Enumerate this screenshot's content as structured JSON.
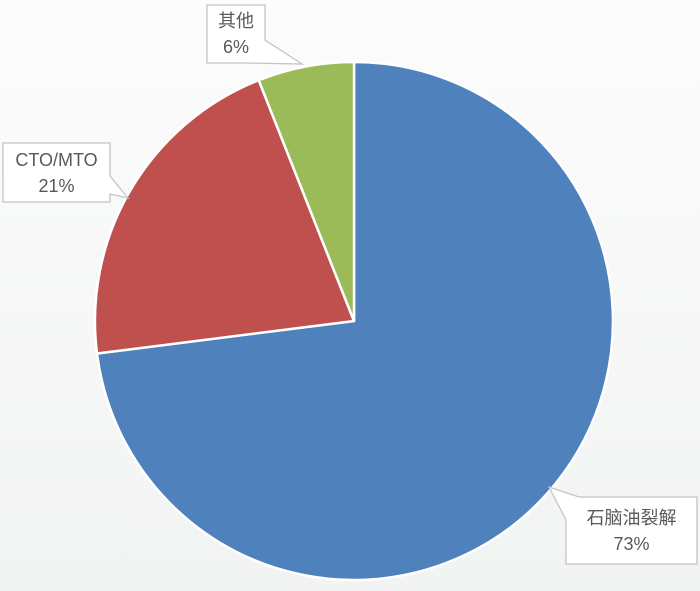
{
  "background": {
    "top": "#fcfcfc",
    "bottom": "#f2f3f3"
  },
  "chart_data": {
    "type": "pie",
    "title": "",
    "legend": "none",
    "labels": "outside-callout-boxes",
    "start_angle": "top",
    "direction": "clockwise",
    "slice_border_color": "#ffffff",
    "callout_fill": "#ffffff",
    "callout_border_color": "#c4c4c4",
    "label_color": "#595959",
    "slices": [
      {
        "id": "naphtha-cracking",
        "label": "石脑油裂解",
        "value": 73,
        "display": "73%",
        "color": "#4f81bd"
      },
      {
        "id": "cto-mto",
        "label": "CTO/MTO",
        "value": 21,
        "display": "21%",
        "color": "#c0504d"
      },
      {
        "id": "other",
        "label": "其他",
        "value": 6,
        "display": "6%",
        "color": "#9bbb59"
      }
    ]
  }
}
